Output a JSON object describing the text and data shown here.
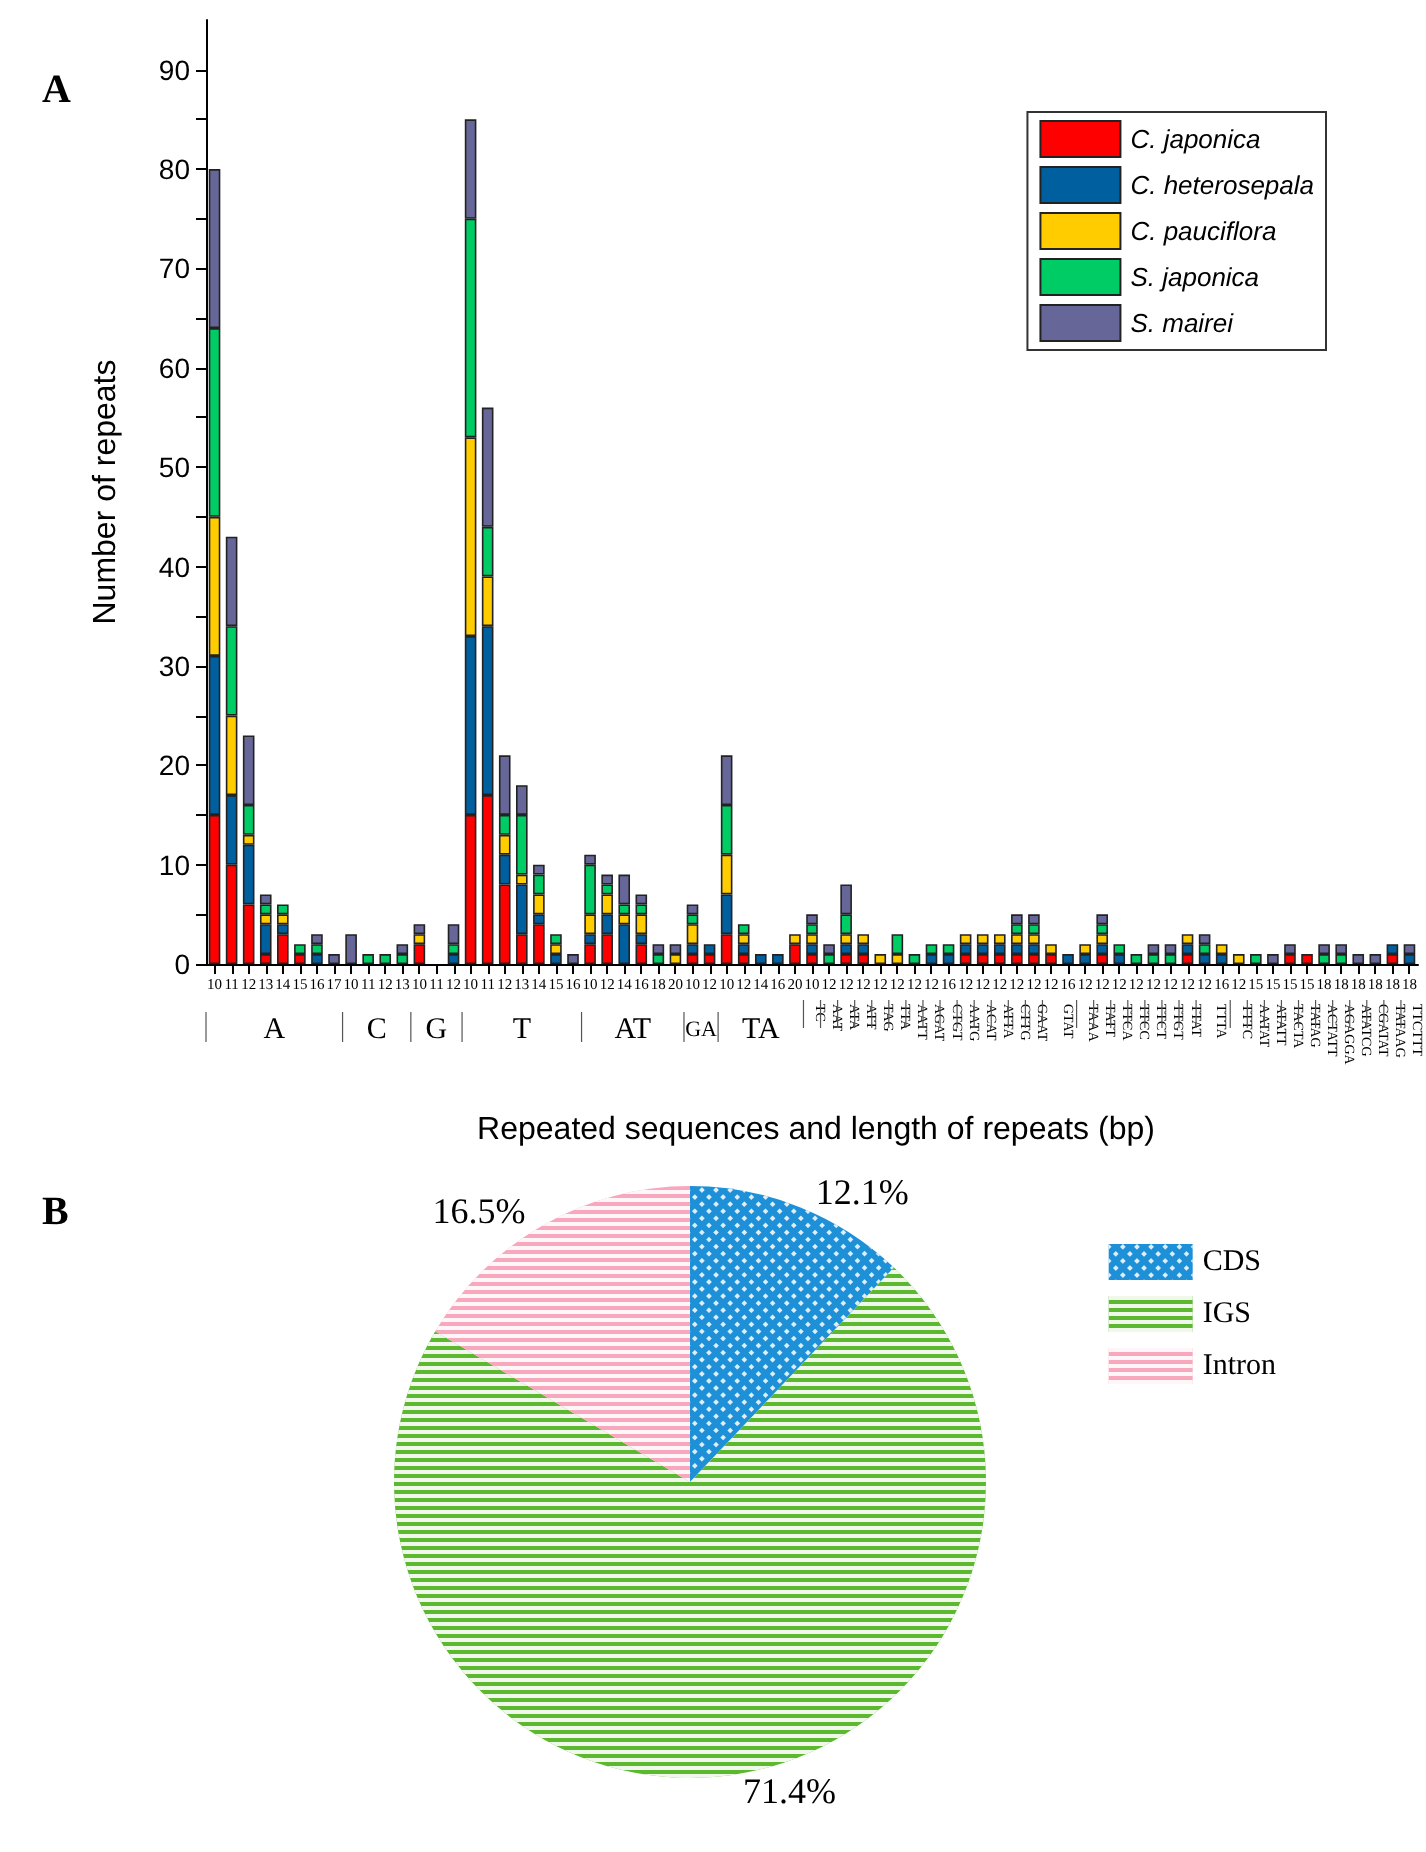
{
  "chart_data": [
    {
      "type": "bar",
      "title": "A",
      "xlabel": "Repeated sequences and length of repeats (bp)",
      "ylabel": "Number of repeats",
      "stacked": true,
      "legend": "top right",
      "grid": false,
      "categories": [
        "10",
        "11",
        "12",
        "13",
        "14",
        "15",
        "16",
        "17",
        "10",
        "11",
        "12",
        "13",
        "10",
        "11",
        "12",
        "10",
        "11",
        "12",
        "13",
        "14",
        "15",
        "16",
        "10",
        "12",
        "14",
        "16",
        "18",
        "20",
        "10",
        "12",
        "10",
        "12",
        "14",
        "16",
        "20",
        "10",
        "12",
        "12",
        "12",
        "12",
        "12",
        "12",
        "12",
        "16",
        "12",
        "12",
        "12",
        "12",
        "12",
        "12",
        "16",
        "12",
        "12",
        "12",
        "12",
        "12",
        "12",
        "12",
        "12",
        "16",
        "12",
        "15",
        "15",
        "15",
        "15",
        "18",
        "18",
        "18",
        "18",
        "18",
        "18"
      ],
      "ylim": [
        0,
        95
      ],
      "yticks": [
        0,
        {
          "value": 5,
          "label": null
        },
        10,
        {
          "value": 15,
          "label": null
        },
        20,
        {
          "value": 25,
          "label": null
        },
        30,
        {
          "value": 35,
          "label": null
        },
        40,
        {
          "value": 45,
          "label": null
        },
        50,
        {
          "value": 55,
          "label": null
        },
        60,
        {
          "value": 65,
          "label": null
        },
        70,
        {
          "value": 75,
          "label": null
        },
        80,
        {
          "value": 85,
          "label": null
        },
        90
      ],
      "annotations": [
        "A",
        "C",
        "G",
        "T",
        "AT",
        "GA",
        "TA",
        "TC",
        "AAT",
        "ATA",
        "ATT",
        "TAG",
        "TTA",
        "AATT",
        "AGAT",
        "CTGT",
        "AATG",
        "ACAT",
        "ATTA",
        "CTTG",
        "GAAT",
        "GTAT",
        "TAAA",
        "TATT",
        "TTCA",
        "TTCC",
        "TTCT",
        "TTGT",
        "TTAT",
        "TTTA",
        "TTTC",
        "AATAT",
        "ATATT",
        "TACTA",
        "TATAG",
        "ACTATT",
        "AGAGGA",
        "ATATCG",
        "CGATAT",
        "TATAAG",
        "TTCTTT"
      ],
      "series": [
        {
          "name": "C. japonica",
          "color": "#ff0000",
          "values": [
            15,
            10,
            6,
            1,
            3,
            1,
            0,
            0,
            0,
            0,
            0,
            0,
            2,
            0,
            0,
            15,
            17,
            8,
            3,
            4,
            0,
            0,
            2,
            3,
            0,
            2,
            0,
            0,
            1,
            1,
            3,
            1,
            0,
            0,
            2,
            1,
            0,
            1,
            1,
            0,
            0,
            0,
            0,
            0,
            1,
            1,
            1,
            1,
            1,
            1,
            0,
            0,
            1,
            0,
            0,
            0,
            0,
            1,
            0,
            0,
            0,
            0,
            0,
            1,
            1,
            0,
            0,
            0,
            0,
            1,
            0
          ]
        },
        {
          "name": "C. heterosepala",
          "color": "#005f9e",
          "values": [
            16,
            7,
            6,
            3,
            1,
            0,
            1,
            0,
            0,
            0,
            0,
            0,
            0,
            0,
            1,
            18,
            17,
            3,
            5,
            1,
            1,
            0,
            1,
            2,
            4,
            1,
            0,
            0,
            1,
            1,
            4,
            1,
            1,
            1,
            0,
            1,
            0,
            1,
            1,
            0,
            0,
            0,
            1,
            1,
            1,
            1,
            1,
            1,
            1,
            0,
            1,
            1,
            1,
            1,
            0,
            0,
            0,
            1,
            1,
            1,
            0,
            0,
            0,
            0,
            0,
            0,
            0,
            0,
            0,
            1,
            1
          ]
        },
        {
          "name": "C. pauciflora",
          "color": "#ffcc00",
          "values": [
            14,
            8,
            1,
            1,
            1,
            0,
            0,
            0,
            0,
            0,
            0,
            0,
            1,
            0,
            0,
            20,
            5,
            2,
            1,
            2,
            1,
            0,
            2,
            2,
            1,
            2,
            0,
            1,
            2,
            0,
            4,
            1,
            0,
            0,
            1,
            1,
            0,
            1,
            1,
            1,
            1,
            0,
            0,
            0,
            1,
            1,
            1,
            1,
            1,
            1,
            0,
            1,
            1,
            0,
            0,
            0,
            0,
            1,
            0,
            1,
            1,
            0,
            0,
            0,
            0,
            0,
            0,
            0,
            0,
            0,
            0
          ]
        },
        {
          "name": "S. japonica",
          "color": "#00cc66",
          "values": [
            19,
            9,
            3,
            1,
            1,
            1,
            1,
            0,
            0,
            1,
            1,
            1,
            0,
            0,
            1,
            22,
            5,
            2,
            6,
            2,
            1,
            0,
            5,
            1,
            1,
            1,
            1,
            0,
            1,
            0,
            5,
            1,
            0,
            0,
            0,
            1,
            1,
            2,
            0,
            0,
            2,
            1,
            1,
            1,
            0,
            0,
            0,
            1,
            1,
            0,
            0,
            0,
            1,
            1,
            1,
            1,
            1,
            0,
            1,
            0,
            0,
            1,
            0,
            0,
            0,
            1,
            1,
            0,
            0,
            0,
            0
          ]
        },
        {
          "name": "S. mairei",
          "color": "#666699",
          "values": [
            16,
            9,
            7,
            1,
            0,
            0,
            1,
            1,
            3,
            0,
            0,
            1,
            1,
            0,
            2,
            10,
            12,
            6,
            3,
            1,
            0,
            1,
            1,
            1,
            3,
            1,
            1,
            1,
            1,
            0,
            5,
            0,
            0,
            0,
            0,
            1,
            1,
            3,
            0,
            0,
            0,
            0,
            0,
            0,
            0,
            0,
            0,
            1,
            1,
            0,
            0,
            0,
            1,
            0,
            0,
            1,
            1,
            0,
            1,
            0,
            0,
            0,
            1,
            1,
            0,
            1,
            1,
            1,
            1,
            0,
            1
          ]
        }
      ]
    },
    {
      "type": "pie",
      "title": "B",
      "legend": "right",
      "categories": [
        "CDS",
        "IGS",
        "Intron"
      ],
      "values": [
        12.1,
        71.4,
        16.5
      ],
      "colors": [
        "#1e90d8",
        "#5cb82e",
        "#f7a8bc"
      ],
      "value_labels": [
        "12.1%",
        "71.4%",
        "16.5%"
      ]
    }
  ]
}
